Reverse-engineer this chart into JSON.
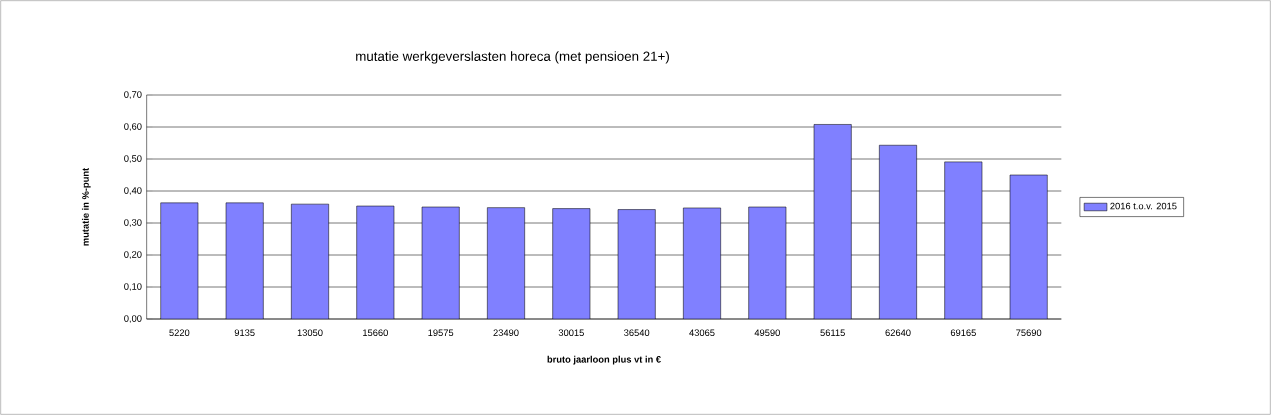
{
  "chart_data": {
    "type": "bar",
    "title": "mutatie werkgeverslasten horeca (met pensioen 21+)",
    "xlabel": "bruto jaarloon plus vt in €",
    "ylabel": "mutatie in %-punt",
    "categories": [
      "5220",
      "9135",
      "13050",
      "15660",
      "19575",
      "23490",
      "30015",
      "36540",
      "43065",
      "49590",
      "56115",
      "62640",
      "69165",
      "75690"
    ],
    "series": [
      {
        "name": "2016 t.o.v. 2015",
        "color": "#8080ff",
        "values": [
          0.363,
          0.363,
          0.359,
          0.353,
          0.35,
          0.348,
          0.345,
          0.342,
          0.347,
          0.35,
          0.608,
          0.543,
          0.491,
          0.45
        ]
      }
    ],
    "ylim": [
      0,
      0.7
    ],
    "yticks": [
      {
        "value": 0,
        "label": "0,00"
      },
      {
        "value": 0.1,
        "label": "0,10"
      },
      {
        "value": 0.2,
        "label": "0,20"
      },
      {
        "value": 0.3,
        "label": "0,30"
      },
      {
        "value": 0.4,
        "label": "0,40"
      },
      {
        "value": 0.5,
        "label": "0,50"
      },
      {
        "value": 0.6,
        "label": "0,60"
      },
      {
        "value": 0.7,
        "label": "0,70"
      }
    ],
    "grid": "y",
    "legend": "right"
  }
}
